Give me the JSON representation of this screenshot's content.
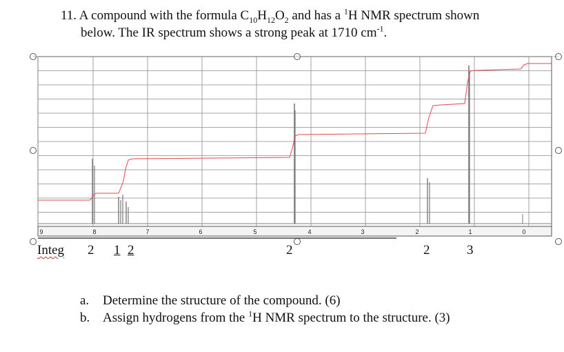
{
  "question": {
    "number": "11.",
    "line1_pre": "A compound with the formula C",
    "f_c": "10",
    "f_h_letter": "H",
    "f_h": "12",
    "f_o_letter": "O",
    "f_o": "2",
    "line1_post": " and has a ",
    "nmr_sup": "1",
    "line1_end": "H NMR spectrum shown",
    "line2_pre": "below. The IR spectrum shows a strong peak at 1710 cm",
    "line2_sup": "-1",
    "line2_end": "."
  },
  "spectrum": {
    "ticks": [
      "9",
      "8",
      "7",
      "6",
      "5",
      "4",
      "3",
      "2",
      "1",
      "0"
    ],
    "grid": "on",
    "integration_color": "#e8454e",
    "peak_color": "#7a7a7a"
  },
  "integration": {
    "label": "Integ",
    "values": [
      "2",
      "1",
      "2",
      "2",
      "2",
      "3"
    ]
  },
  "parts": [
    {
      "letter": "a.",
      "text": "Determine the structure of the compound. (6)"
    },
    {
      "letter": "b.",
      "text_pre": "Assign hydrogens from the ",
      "sup": "1",
      "text_post": "H NMR spectrum to the structure. (3)"
    }
  ]
}
